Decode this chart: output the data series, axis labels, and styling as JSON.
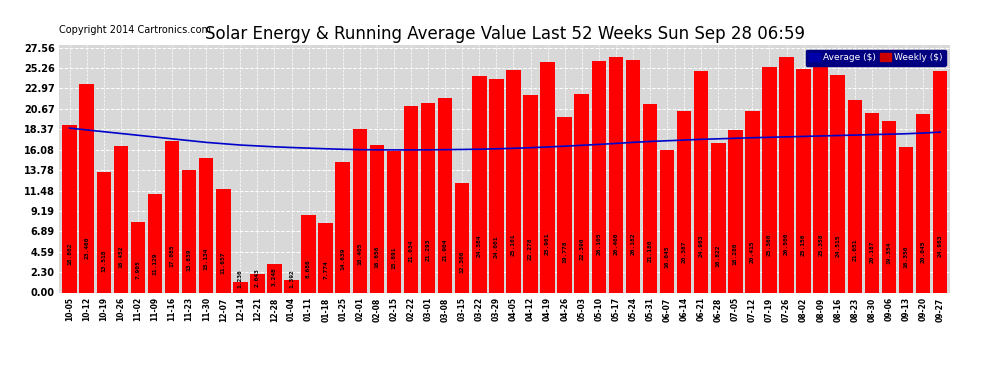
{
  "title": "Solar Energy & Running Average Value Last 52 Weeks Sun Sep 28 06:59",
  "copyright": "Copyright 2014 Cartronics.com",
  "categories": [
    "10-05",
    "10-12",
    "10-19",
    "10-26",
    "11-02",
    "11-09",
    "11-16",
    "11-23",
    "11-30",
    "12-07",
    "12-14",
    "12-21",
    "12-28",
    "01-04",
    "01-11",
    "01-18",
    "01-25",
    "02-01",
    "02-08",
    "02-15",
    "02-22",
    "03-01",
    "03-08",
    "03-15",
    "03-22",
    "03-29",
    "04-05",
    "04-12",
    "04-19",
    "04-26",
    "05-03",
    "05-10",
    "05-17",
    "05-24",
    "05-31",
    "06-07",
    "06-14",
    "06-21",
    "06-28",
    "07-05",
    "07-12",
    "07-19",
    "07-26",
    "08-02",
    "08-09",
    "08-16",
    "08-23",
    "08-30",
    "09-06",
    "09-13",
    "09-20",
    "09-27"
  ],
  "weekly_values": [
    18.802,
    23.46,
    13.518,
    16.452,
    7.905,
    11.129,
    17.085,
    13.839,
    15.134,
    11.657,
    1.236,
    2.043,
    3.248,
    1.392,
    8.686,
    7.774,
    14.639,
    18.405,
    16.656,
    15.891,
    21.034,
    21.293,
    21.904,
    12.306,
    24.384,
    24.001,
    25.101,
    22.278,
    25.901,
    19.778,
    22.39,
    26.105,
    26.46,
    26.182,
    21.18,
    16.045,
    20.387,
    24.983,
    16.822,
    18.286,
    20.415,
    25.36,
    26.5,
    25.156,
    25.358,
    24.515,
    21.651,
    20.187,
    19.354,
    16.35,
    20.045,
    24.983
  ],
  "avg_values": [
    18.5,
    18.3,
    18.1,
    17.9,
    17.7,
    17.5,
    17.3,
    17.1,
    16.9,
    16.75,
    16.6,
    16.5,
    16.4,
    16.32,
    16.25,
    16.18,
    16.12,
    16.08,
    16.06,
    16.05,
    16.05,
    16.06,
    16.08,
    16.1,
    16.13,
    16.18,
    16.23,
    16.3,
    16.38,
    16.47,
    16.57,
    16.67,
    16.78,
    16.9,
    17.0,
    17.08,
    17.16,
    17.24,
    17.3,
    17.36,
    17.42,
    17.47,
    17.52,
    17.57,
    17.62,
    17.67,
    17.72,
    17.77,
    17.82,
    17.87,
    17.95,
    18.05
  ],
  "bar_color": "#ff0000",
  "line_color": "#0000cc",
  "bg_color": "#ffffff",
  "plot_bg_color": "#d8d8d8",
  "grid_color": "#ffffff",
  "yticks": [
    0.0,
    2.3,
    4.59,
    6.89,
    9.19,
    11.48,
    13.78,
    16.08,
    18.37,
    20.67,
    22.97,
    25.26,
    27.56
  ],
  "ylim": [
    0.0,
    27.56
  ],
  "title_fontsize": 12,
  "copyright_fontsize": 7,
  "value_label_fontsize": 4.5
}
